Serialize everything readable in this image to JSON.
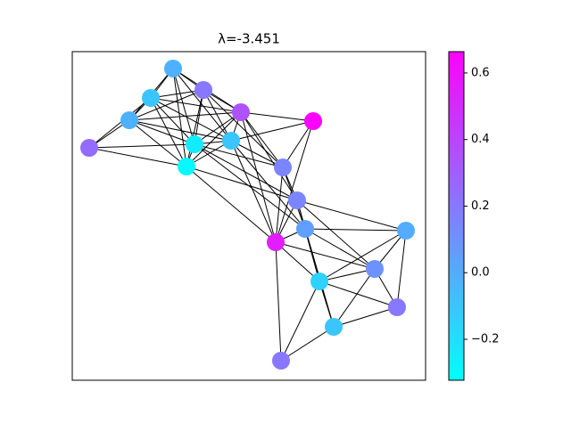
{
  "chart_data": {
    "type": "network",
    "title": "λ=-3.451",
    "colormap": "cool",
    "values": [
      -0.02,
      0.2,
      -0.1,
      -0.02,
      0.35,
      0.66,
      0.25,
      -0.25,
      -0.1,
      -0.3,
      0.15,
      0.15,
      0.05,
      0.55,
      0.0,
      0.1,
      -0.15,
      0.2,
      -0.1,
      0.2
    ],
    "ylim": [
      -0.323,
      0.664
    ],
    "yticks": [
      {
        "value": -0.2,
        "label": "−0.2"
      },
      {
        "value": 0,
        "label": "0.0"
      },
      0.2,
      0.4,
      0.6
    ]
  }
}
